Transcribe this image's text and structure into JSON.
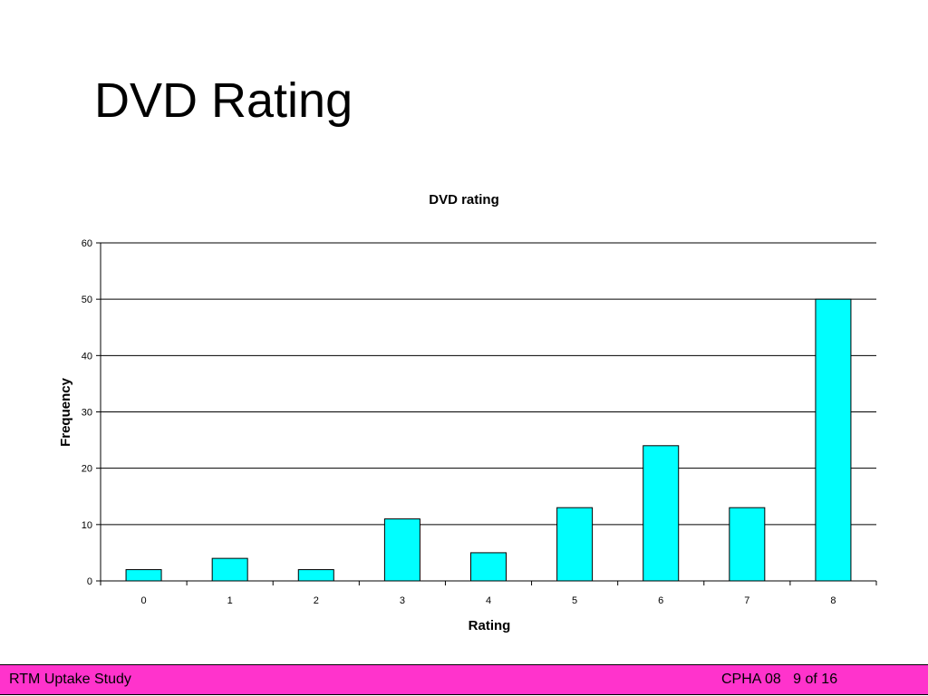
{
  "slide": {
    "title": "DVD Rating"
  },
  "chart_data": {
    "type": "bar",
    "title": "DVD rating",
    "xlabel": "Rating",
    "ylabel": "Frequency",
    "categories": [
      "0",
      "1",
      "2",
      "3",
      "4",
      "5",
      "6",
      "7",
      "8"
    ],
    "values": [
      2,
      4,
      2,
      11,
      5,
      13,
      24,
      13,
      50
    ],
    "ylim": [
      0,
      60
    ],
    "yticks": [
      0,
      10,
      20,
      30,
      40,
      50,
      60
    ],
    "grid": true,
    "legend": "none",
    "bar_color": "#00ffff"
  },
  "footer": {
    "left": "RTM Uptake Study",
    "conference": "CPHA 08",
    "page": "9 of 16",
    "background": "#ff33cc"
  }
}
